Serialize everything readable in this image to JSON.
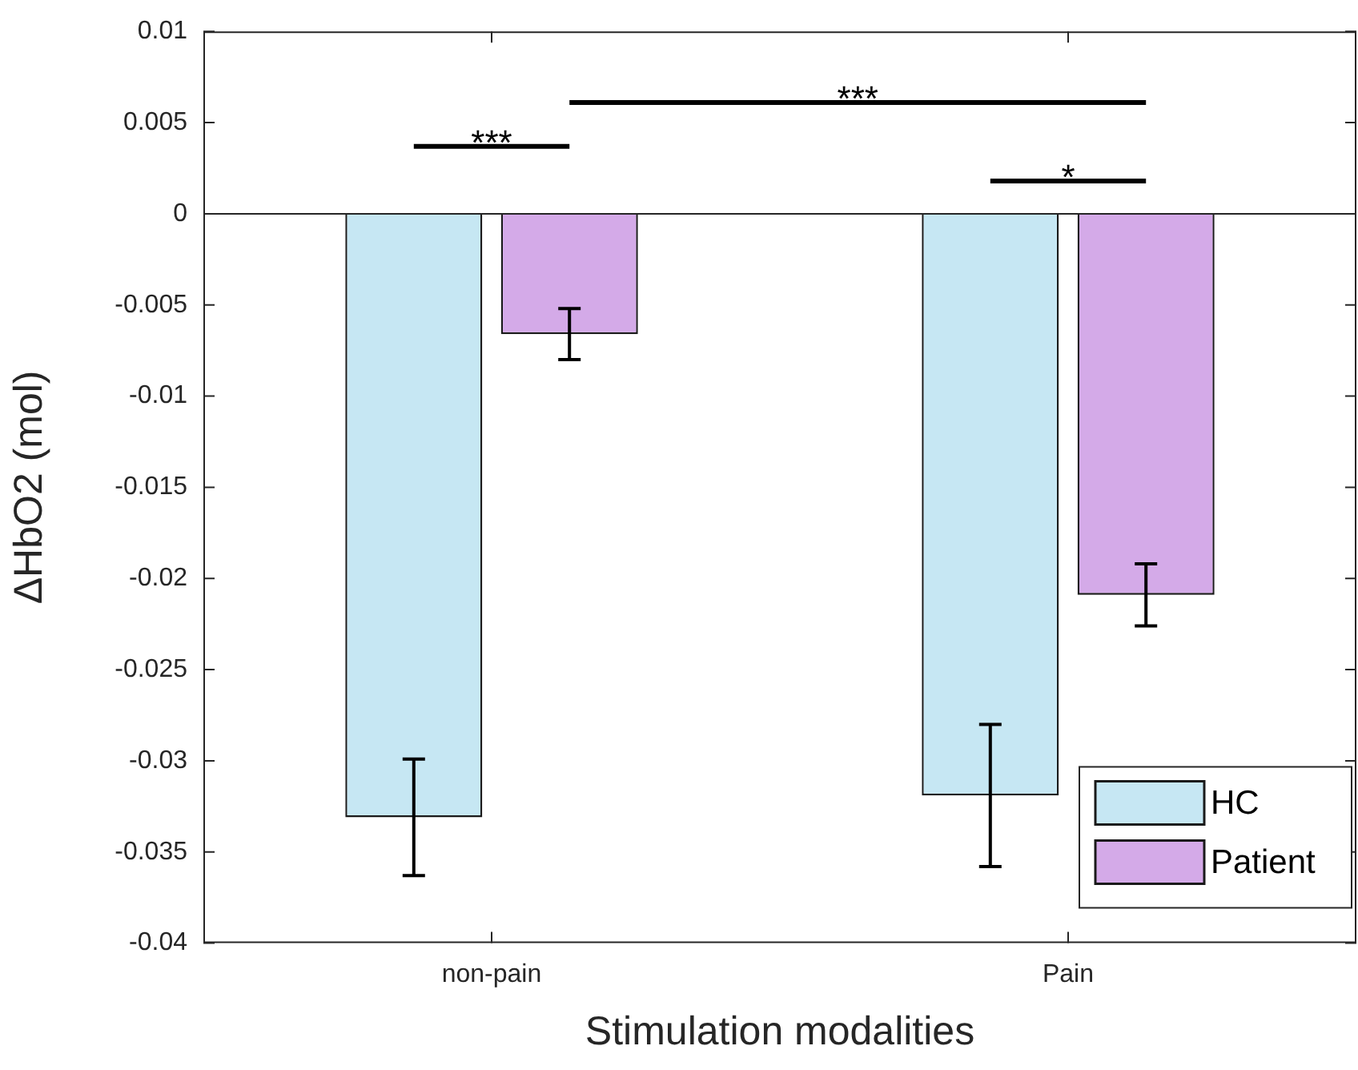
{
  "chart_data": {
    "type": "bar",
    "xlabel": "Stimulation modalities",
    "ylabel": "ΔHbO2 (mol)",
    "categories": [
      "non-pain",
      "Pain"
    ],
    "series": [
      {
        "name": "HC",
        "color": "#c6e7f3",
        "values": [
          -0.0331,
          -0.0319
        ],
        "errors": [
          0.0032,
          0.0039
        ]
      },
      {
        "name": "Patient",
        "color": "#d4aae8",
        "values": [
          -0.0066,
          -0.0209
        ],
        "errors": [
          0.0014,
          0.0017
        ]
      }
    ],
    "ylim": [
      -0.04,
      0.01
    ],
    "yticks": [
      -0.04,
      -0.035,
      -0.03,
      -0.025,
      -0.02,
      -0.015,
      -0.01,
      -0.005,
      0,
      0.005,
      0.01
    ],
    "ref_lines": [
      {
        "axis": "y",
        "value": 0
      }
    ],
    "legend": "bottom right",
    "annotations": [
      "***",
      "***",
      "*"
    ]
  }
}
